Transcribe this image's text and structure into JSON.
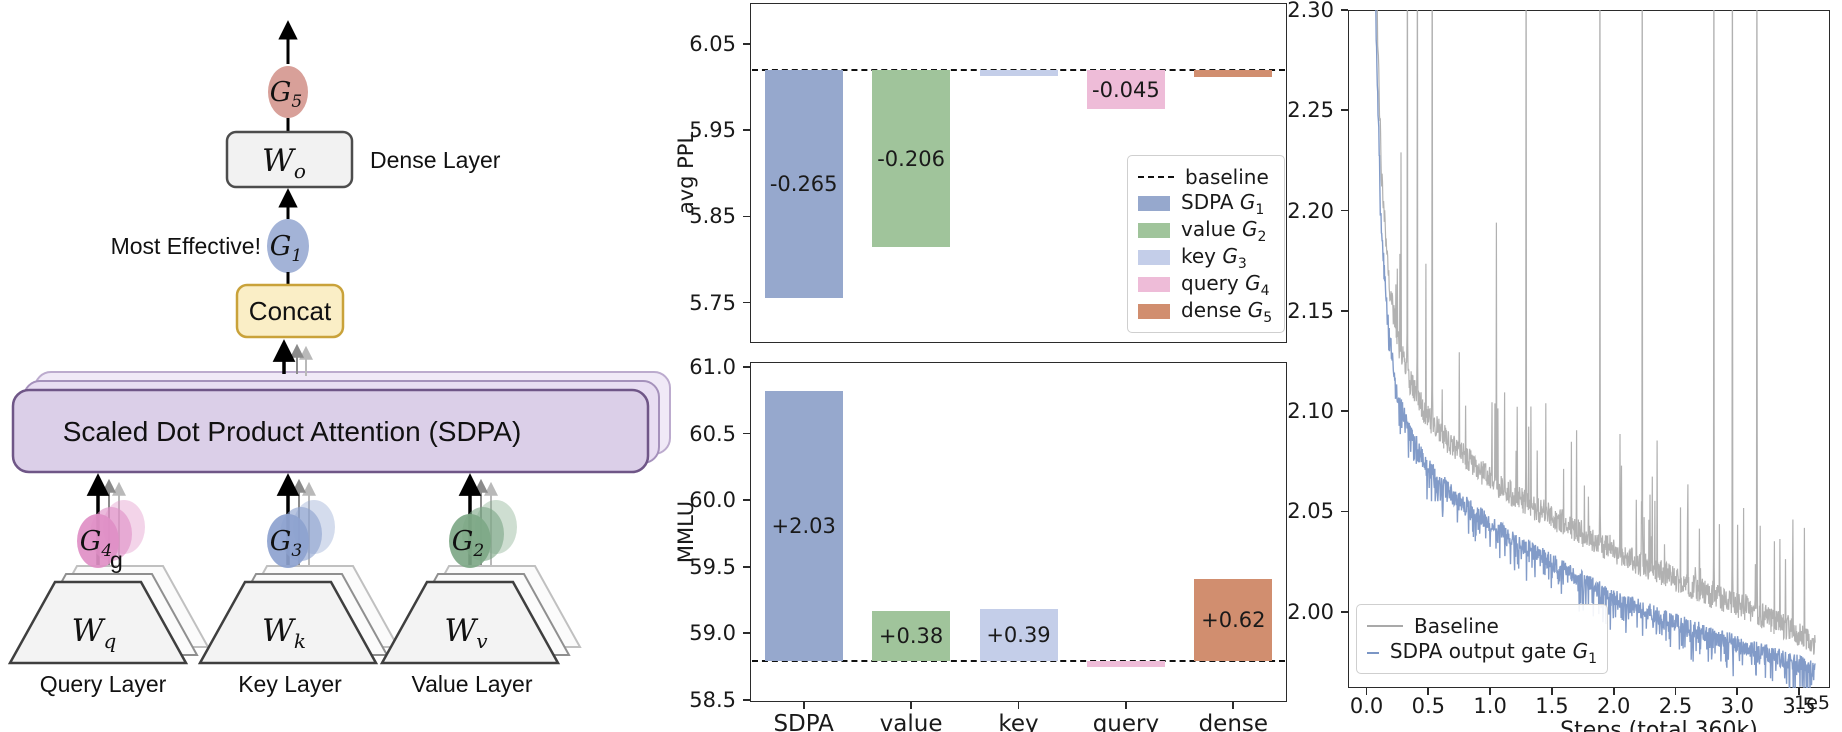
{
  "diagram": {
    "g5": {
      "base": "G",
      "sub": "5"
    },
    "wo": {
      "base": "W",
      "sub": "o"
    },
    "dense_layer_label": "Dense Layer",
    "most_effective_label": "Most Effective!",
    "g1": {
      "base": "G",
      "sub": "1"
    },
    "concat_label": "Concat",
    "sdpa_label": "Scaled Dot Product Attention (SDPA)",
    "stray_g": "g",
    "branches": [
      {
        "gate_base": "G",
        "gate_sub": "4",
        "w_base": "W",
        "w_sub": "q",
        "layer_label": "Query Layer",
        "gate_color": "#df8fc6"
      },
      {
        "gate_base": "G",
        "gate_sub": "3",
        "w_base": "W",
        "w_sub": "k",
        "layer_label": "Key Layer",
        "gate_color": "#8da2cf"
      },
      {
        "gate_base": "G",
        "gate_sub": "2",
        "w_base": "W",
        "w_sub": "v",
        "layer_label": "Value Layer",
        "gate_color": "#7ea887"
      }
    ],
    "colors": {
      "g5": "#d8a099",
      "g1": "#a3b3d7",
      "wo_fill": "#f2f2f2",
      "wo_border": "#4d4d4d",
      "concat_fill": "#faeec6",
      "concat_border": "#c9a23a",
      "sdpa_fill": "#dbcfe8",
      "sdpa_border": "#6f5687",
      "sdpa_echo2_fill": "#e8ddf2",
      "sdpa_echo2_border": "#a591bb",
      "sdpa_echo3_fill": "#f0e9f7",
      "sdpa_echo3_border": "#bcabce",
      "trap_fill": "#f3f3f3",
      "trap_border": "#3f3f3f"
    }
  },
  "chart_data": [
    {
      "type": "bar",
      "id": "ppl",
      "ylabel": "avg PPL",
      "categories": [
        "SDPA",
        "value",
        "key",
        "query",
        "dense"
      ],
      "show_category_labels": false,
      "baseline": 6.02,
      "baseline_label": "baseline",
      "delta_values": [
        -0.265,
        -0.206,
        -0.007,
        -0.045,
        -0.008
      ],
      "bar_labels": [
        "-0.265",
        "-0.206",
        "",
        "-0.045",
        ""
      ],
      "bar_colors": [
        "#96a8cd",
        "#a0c49b",
        "#c4cee9",
        "#eebcd8",
        "#d18e6f"
      ],
      "yticks": [
        5.75,
        5.85,
        5.95,
        6.05
      ],
      "ytick_labels": [
        "5.75",
        "5.85",
        "5.95",
        "6.05"
      ],
      "ylim": [
        5.703,
        6.098
      ],
      "legend": {
        "items": [
          {
            "label": "baseline",
            "dash": true
          },
          {
            "label": "SDPA ",
            "g": "G",
            "sub": "1",
            "color": "#96a8cd"
          },
          {
            "label": "value ",
            "g": "G",
            "sub": "2",
            "color": "#a0c49b"
          },
          {
            "label": "key ",
            "g": "G",
            "sub": "3",
            "color": "#c4cee9"
          },
          {
            "label": "query ",
            "g": "G",
            "sub": "4",
            "color": "#eebcd8"
          },
          {
            "label": "dense ",
            "g": "G",
            "sub": "5",
            "color": "#d18e6f"
          }
        ]
      }
    },
    {
      "type": "bar",
      "id": "mmlu",
      "ylabel": "MMLU",
      "categories": [
        "SDPA",
        "value",
        "key",
        "query",
        "dense"
      ],
      "show_category_labels": true,
      "baseline": 58.79,
      "delta_values": [
        2.03,
        0.38,
        0.39,
        -0.045,
        0.62
      ],
      "bar_labels": [
        "+2.03",
        "+0.38",
        "+0.39",
        "",
        "+0.62"
      ],
      "bar_colors": [
        "#96a8cd",
        "#a0c49b",
        "#c4cee9",
        "#eebcd8",
        "#d18e6f"
      ],
      "yticks": [
        58.5,
        59.0,
        59.5,
        60.0,
        60.5,
        61.0
      ],
      "ytick_labels": [
        "58.5",
        "59.0",
        "59.5",
        "60.0",
        "60.5",
        "61.0"
      ],
      "ylim": [
        58.484,
        61.037
      ]
    },
    {
      "type": "line",
      "id": "loss",
      "xlabel": "Steps (total 360k)",
      "x_scale_note": "1e5",
      "xticks": [
        0,
        0.5,
        1,
        1.5,
        2,
        2.5,
        3,
        3.5
      ],
      "xtick_labels": [
        "0.0",
        "0.5",
        "1.0",
        "1.5",
        "2.0",
        "2.5",
        "3.0",
        "3.5"
      ],
      "yticks": [
        2.0,
        2.05,
        2.1,
        2.15,
        2.2,
        2.25,
        2.3
      ],
      "ytick_labels": [
        "2.00",
        "2.05",
        "2.10",
        "2.15",
        "2.20",
        "2.25",
        "2.30"
      ],
      "ylim": [
        1.962,
        2.3
      ],
      "xlim": [
        -0.15,
        3.75
      ],
      "series": [
        {
          "name": "Baseline",
          "color": "#a9a9a9",
          "envelope_x": [
            0.02,
            0.05,
            0.08,
            0.12,
            0.18,
            0.25,
            0.35,
            0.5,
            0.7,
            1.0,
            1.3,
            1.6,
            2.0,
            2.4,
            2.8,
            3.2,
            3.45,
            3.63
          ],
          "envelope_y": [
            2.62,
            2.44,
            2.31,
            2.22,
            2.165,
            2.135,
            2.115,
            2.096,
            2.082,
            2.066,
            2.054,
            2.044,
            2.03,
            2.019,
            2.008,
            1.998,
            1.991,
            1.983
          ],
          "clipped_spikes_x": [
            0.33,
            0.41,
            0.53,
            1.29,
            1.89,
            2.23,
            2.81,
            2.96,
            3.16
          ],
          "medium_spikes": [
            [
              0.28,
              0.1
            ],
            [
              0.48,
              0.075
            ],
            [
              0.75,
              0.05
            ],
            [
              1.05,
              0.13
            ],
            [
              1.22,
              0.045
            ],
            [
              1.45,
              0.055
            ],
            [
              1.7,
              0.05
            ],
            [
              2.05,
              0.06
            ],
            [
              2.35,
              0.065
            ],
            [
              2.6,
              0.05
            ],
            [
              3.05,
              0.05
            ],
            [
              3.3,
              0.04
            ],
            [
              3.45,
              0.055
            ]
          ]
        },
        {
          "name": "SDPA output gate ",
          "g": "G",
          "sub": "1",
          "color": "#7b96c5",
          "envelope_x": [
            0.02,
            0.05,
            0.08,
            0.12,
            0.18,
            0.25,
            0.35,
            0.5,
            0.7,
            1.0,
            1.3,
            1.6,
            2.0,
            2.4,
            2.8,
            3.2,
            3.45,
            3.63
          ],
          "envelope_y": [
            2.6,
            2.41,
            2.28,
            2.19,
            2.14,
            2.108,
            2.09,
            2.072,
            2.058,
            2.044,
            2.032,
            2.021,
            2.007,
            1.997,
            1.988,
            1.98,
            1.975,
            1.971
          ]
        }
      ],
      "legend": {
        "items": [
          {
            "label": "Baseline",
            "line": "#a9a9a9"
          },
          {
            "label": "SDPA output gate ",
            "g": "G",
            "sub": "1",
            "line": "#7b96c5"
          }
        ]
      }
    }
  ]
}
